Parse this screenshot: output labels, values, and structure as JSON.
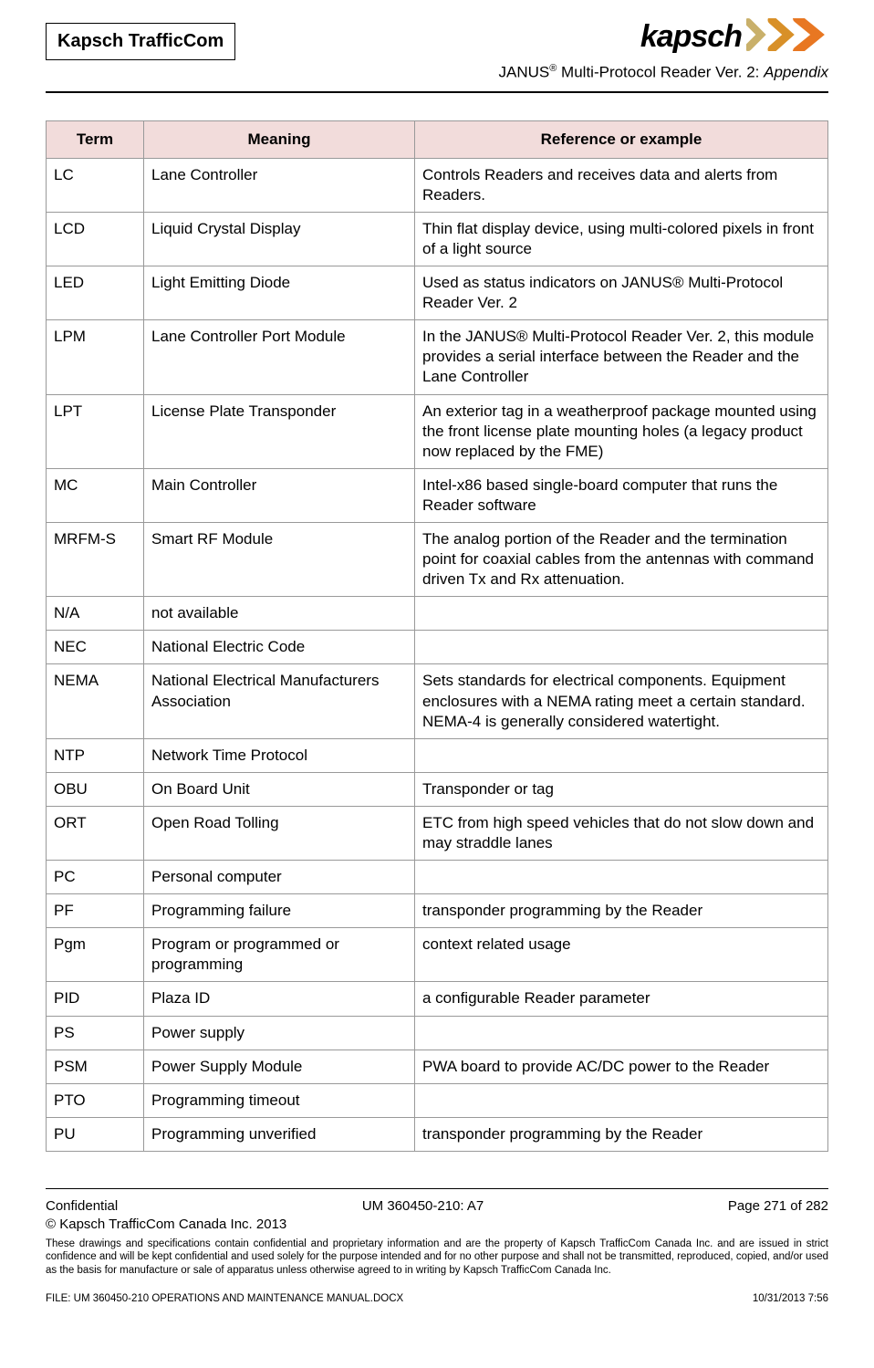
{
  "header": {
    "company": "Kapsch TrafficCom",
    "logo_text": "kapsch",
    "subtitle_prefix": "JANUS",
    "subtitle_reg": "®",
    "subtitle_rest": " Multi-Protocol Reader Ver. 2: ",
    "subtitle_italic": "Appendix"
  },
  "table": {
    "headers": [
      "Term",
      "Meaning",
      "Reference or example"
    ],
    "rows": [
      {
        "term": "LC",
        "meaning": "Lane Controller",
        "ref": "Controls Readers and receives data and alerts from Readers."
      },
      {
        "term": "LCD",
        "meaning": "Liquid Crystal Display",
        "ref": "Thin flat display device, using multi-colored pixels in front of a light source"
      },
      {
        "term": "LED",
        "meaning": "Light Emitting Diode",
        "ref": "Used as status indicators on JANUS® Multi-Protocol Reader Ver. 2"
      },
      {
        "term": "LPM",
        "meaning": "Lane Controller Port Module",
        "ref": "In the JANUS® Multi-Protocol Reader Ver. 2, this module provides a serial interface between the Reader and the Lane Controller"
      },
      {
        "term": "LPT",
        "meaning": "License Plate Transponder",
        "ref": "An exterior tag in a weatherproof package mounted using the front license plate mounting holes (a legacy product now replaced by the FME)"
      },
      {
        "term": "MC",
        "meaning": "Main Controller",
        "ref": "Intel-x86 based single-board computer that runs the Reader software"
      },
      {
        "term": "MRFM-S",
        "meaning": "Smart RF Module",
        "ref": "The analog portion of the Reader and the termination point for coaxial cables from the antennas with command driven Tx and Rx attenuation."
      },
      {
        "term": "N/A",
        "meaning": "not available",
        "ref": ""
      },
      {
        "term": "NEC",
        "meaning": "National Electric Code",
        "ref": ""
      },
      {
        "term": "NEMA",
        "meaning": "National Electrical Manufacturers Association",
        "ref": "Sets standards for electrical components. Equipment enclosures with a NEMA rating meet a certain standard. NEMA-4 is generally considered watertight."
      },
      {
        "term": "NTP",
        "meaning": "Network Time Protocol",
        "ref": ""
      },
      {
        "term": "OBU",
        "meaning": "On Board Unit",
        "ref": "Transponder or tag"
      },
      {
        "term": "ORT",
        "meaning": "Open Road Tolling",
        "ref": "ETC from high speed vehicles that do not slow down and may straddle lanes"
      },
      {
        "term": "PC",
        "meaning": "Personal computer",
        "ref": ""
      },
      {
        "term": "PF",
        "meaning": "Programming failure",
        "ref": "transponder programming by the Reader"
      },
      {
        "term": "Pgm",
        "meaning": "Program or programmed or programming",
        "ref": "context related usage"
      },
      {
        "term": "PID",
        "meaning": "Plaza ID",
        "ref": "a configurable Reader parameter"
      },
      {
        "term": "PS",
        "meaning": "Power supply",
        "ref": ""
      },
      {
        "term": "PSM",
        "meaning": "Power Supply Module",
        "ref": "PWA board to provide AC/DC power to the Reader"
      },
      {
        "term": "PTO",
        "meaning": "Programming timeout",
        "ref": ""
      },
      {
        "term": "PU",
        "meaning": "Programming unverified",
        "ref": "transponder programming by the Reader"
      }
    ]
  },
  "footer": {
    "confidential": "Confidential",
    "docnum": "UM 360450-210: A7",
    "page": "Page 271 of 282",
    "copyright": "© Kapsch TrafficCom Canada Inc. 2013",
    "fineprint": "These drawings and specifications contain confidential and proprietary information and are the property of Kapsch TrafficCom Canada Inc. and are issued in strict confidence and will be kept confidential and used solely for the purpose intended and for no other purpose and shall not be transmitted, reproduced, copied, and/or used as the basis for manufacture or sale of apparatus unless otherwise agreed to in writing by Kapsch TrafficCom Canada Inc.",
    "file": "FILE: UM 360450-210 OPERATIONS AND MAINTENANCE MANUAL.DOCX",
    "date": "10/31/2013 7:56"
  },
  "colors": {
    "header_bg": "#f2dcdb",
    "chevron1": "#c9b06a",
    "chevron2": "#d89028",
    "chevron3": "#e87722"
  }
}
